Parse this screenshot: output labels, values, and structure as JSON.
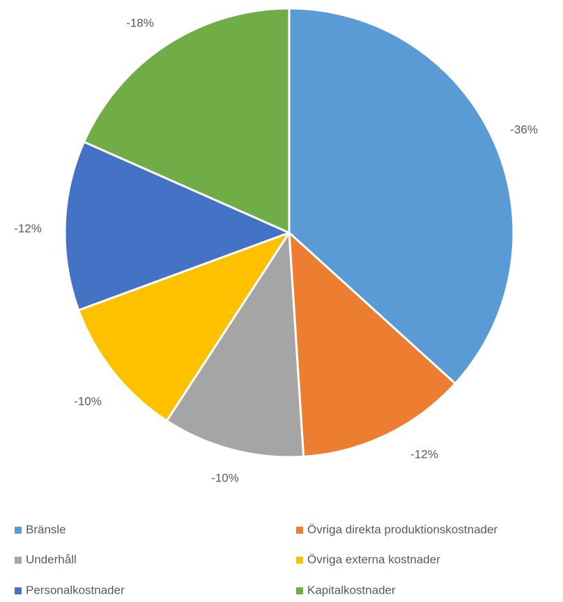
{
  "chart_data": {
    "type": "pie",
    "start_angle_deg": 0,
    "direction": "clockwise",
    "legend_position": "bottom",
    "slices": [
      {
        "name": "Bränsle",
        "value": 36,
        "label": "-36%",
        "color": "#5B9BD5"
      },
      {
        "name": "Övriga direkta produktionskostnader",
        "value": 12,
        "label": "-12%",
        "color": "#ED7D31"
      },
      {
        "name": "Underhåll",
        "value": 10,
        "label": "-10%",
        "color": "#A5A5A5"
      },
      {
        "name": "Övriga externa kostnader",
        "value": 10,
        "label": "-10%",
        "color": "#FFC000"
      },
      {
        "name": "Personalkostnader",
        "value": 12,
        "label": "-12%",
        "color": "#4472C4"
      },
      {
        "name": "Kapitalkostnader",
        "value": 18,
        "label": "-18%",
        "color": "#70AD47"
      }
    ]
  }
}
